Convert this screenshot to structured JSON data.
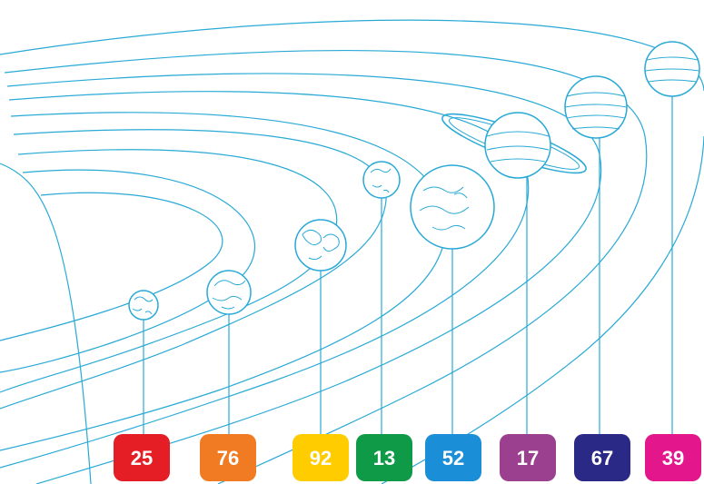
{
  "line_color": "#29a9d6",
  "planets": [
    {
      "name": "mercury",
      "number": "25",
      "tile_color": "#e51e25"
    },
    {
      "name": "venus",
      "number": "76",
      "tile_color": "#f07b22"
    },
    {
      "name": "earth",
      "number": "92",
      "tile_color": "#ffcc00"
    },
    {
      "name": "mars",
      "number": "13",
      "tile_color": "#0f9a48"
    },
    {
      "name": "jupiter",
      "number": "52",
      "tile_color": "#1a8fd8"
    },
    {
      "name": "saturn",
      "number": "17",
      "tile_color": "#9b3f8f"
    },
    {
      "name": "uranus",
      "number": "67",
      "tile_color": "#2a2a86"
    },
    {
      "name": "neptune",
      "number": "39",
      "tile_color": "#e4168b"
    }
  ]
}
